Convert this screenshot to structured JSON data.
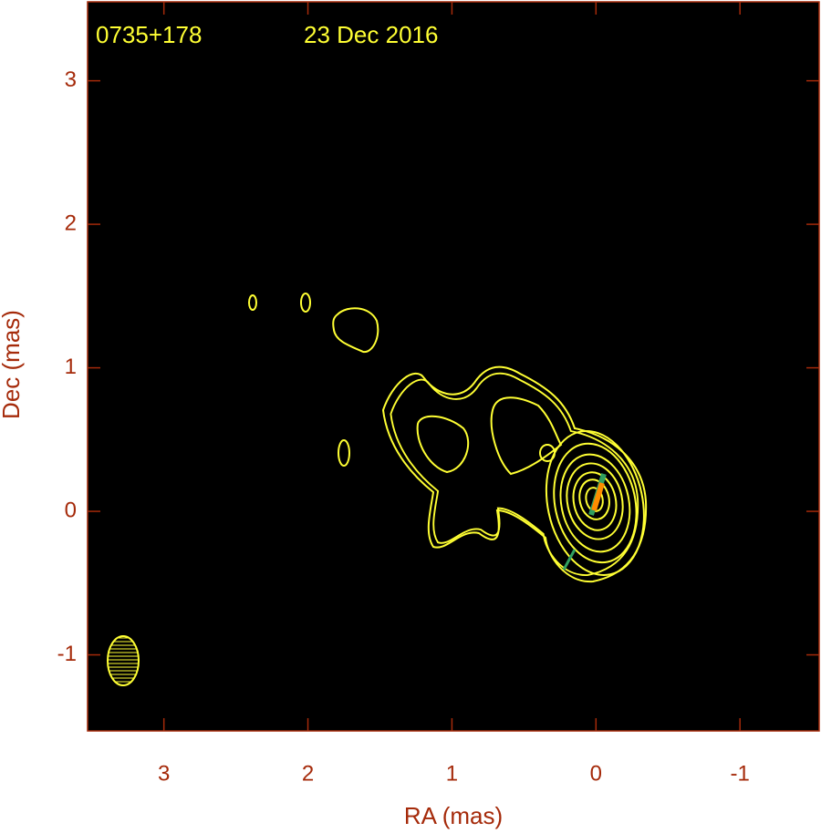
{
  "chart_data": {
    "type": "contour",
    "labels": [
      "0735+178",
      "23 Dec 2016"
    ],
    "xlabel": "RA (mas)",
    "ylabel": "Dec (mas)",
    "xlim": [
      3.53,
      -1.55
    ],
    "ylim": [
      -1.53,
      3.55
    ],
    "xticks": [
      3,
      2,
      1,
      0,
      -1
    ],
    "yticks": [
      -1,
      0,
      1,
      2,
      3
    ],
    "color": "#ffff33",
    "axis_color": "#a52a0a"
  }
}
